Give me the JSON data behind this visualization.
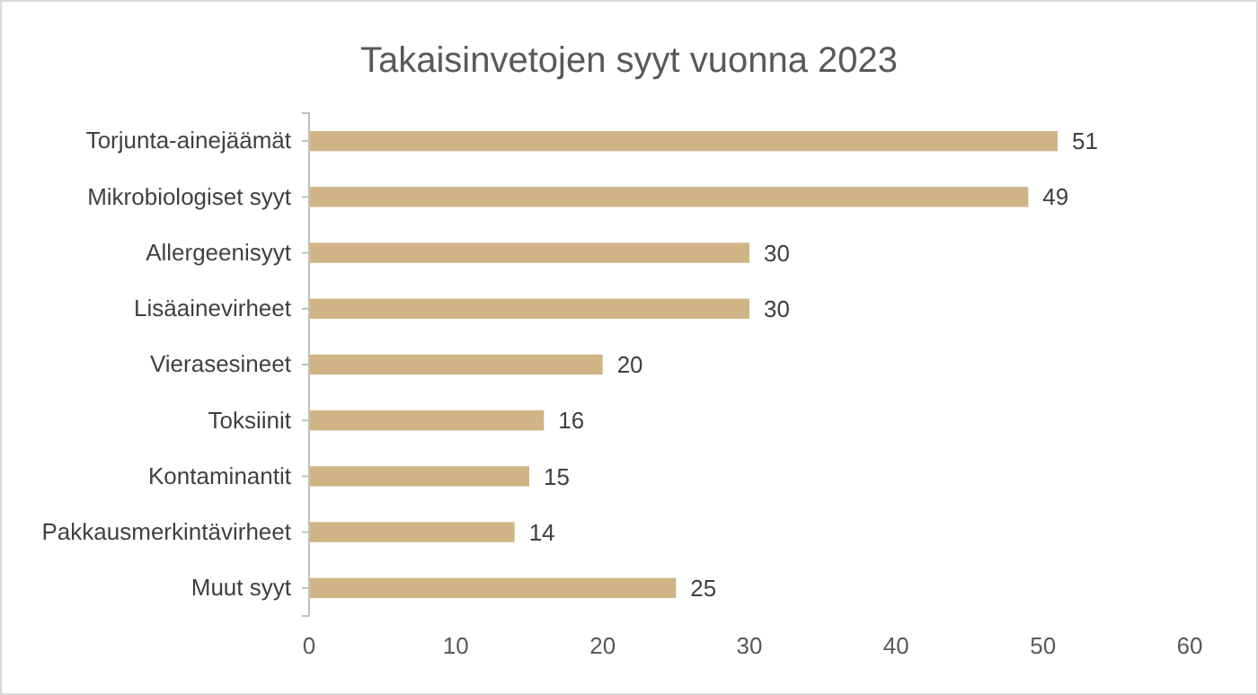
{
  "chart_data": {
    "type": "bar",
    "orientation": "horizontal",
    "title": "Takaisinvetojen syyt vuonna 2023",
    "categories": [
      "Torjunta-ainejäämät",
      "Mikrobiologiset syyt",
      "Allergeenisyyt",
      "Lisäainevirheet",
      "Vierasesineet",
      "Toksiinit",
      "Kontaminantit",
      "Pakkausmerkintävirheet",
      "Muut syyt"
    ],
    "values": [
      51,
      49,
      30,
      30,
      20,
      16,
      15,
      14,
      25
    ],
    "color": "#cfb586",
    "xlim": [
      0,
      60
    ],
    "xticks": [
      0,
      10,
      20,
      30,
      40,
      50,
      60
    ],
    "data_labels": true,
    "grid": false
  }
}
